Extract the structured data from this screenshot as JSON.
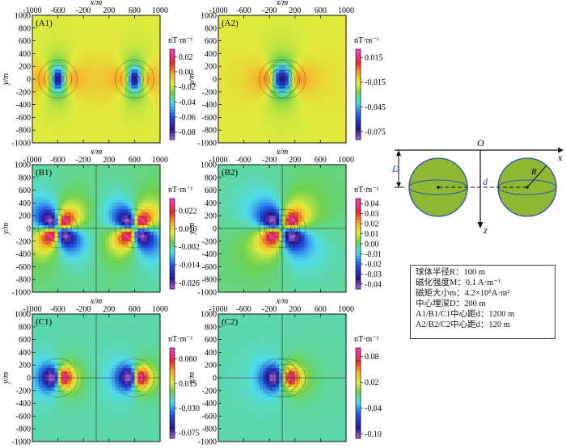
{
  "chart_data": [
    {
      "type": "heatmap",
      "panel": "(A1)",
      "xlabel": "x/m",
      "ylabel": "y/m",
      "xlim": [
        -1000,
        1000
      ],
      "ylim": [
        -1000,
        1000
      ],
      "xticks": [
        -1000,
        -600,
        -200,
        200,
        600,
        1000
      ],
      "yticks": [
        1000,
        800,
        600,
        400,
        200,
        0,
        -200,
        -400,
        -600,
        -800,
        -1000
      ],
      "colorbar_unit": "nT·m⁻¹",
      "colorbar_ticks": [
        "0.02",
        "0.00",
        "-0.02",
        "-0.04",
        "-0.06",
        "-0.08"
      ],
      "colorbar_range": [
        -0.09,
        0.03
      ],
      "sources_x": [
        -600,
        600
      ],
      "separation_m": 1200
    },
    {
      "type": "heatmap",
      "panel": "(A2)",
      "xlabel": "x/m",
      "ylabel": "y/m",
      "xlim": [
        -1000,
        1000
      ],
      "ylim": [
        -1000,
        1000
      ],
      "xticks": [
        -1000,
        -600,
        -200,
        200,
        600,
        1000
      ],
      "yticks": [
        1000,
        800,
        600,
        400,
        200,
        0,
        -200,
        -400,
        -600,
        -800,
        -1000
      ],
      "colorbar_unit": "nT·m⁻¹",
      "colorbar_ticks": [
        "0.015",
        "-0.015",
        "-0.045",
        "-0.075"
      ],
      "colorbar_range": [
        -0.085,
        0.025
      ],
      "sources_x": [
        -60,
        60
      ],
      "separation_m": 120
    },
    {
      "type": "heatmap",
      "panel": "(B1)",
      "xlabel": "x/m",
      "ylabel": "y/m",
      "xlim": [
        -1000,
        1000
      ],
      "ylim": [
        -1000,
        1000
      ],
      "xticks": [
        -1000,
        -600,
        -200,
        200,
        600,
        1000
      ],
      "yticks": [
        1000,
        800,
        600,
        400,
        200,
        0,
        -200,
        -400,
        -600,
        -800,
        -1000
      ],
      "colorbar_unit": "nT·m⁻¹",
      "colorbar_ticks": [
        "0.022",
        "0.010",
        "-0.002",
        "-0.014",
        "-0.026"
      ],
      "colorbar_range": [
        -0.03,
        0.03
      ],
      "sources_x": [
        -600,
        600
      ],
      "separation_m": 1200
    },
    {
      "type": "heatmap",
      "panel": "(B2)",
      "xlabel": "x/m",
      "ylabel": "y/m",
      "xlim": [
        -1000,
        1000
      ],
      "ylim": [
        -1000,
        1000
      ],
      "xticks": [
        -1000,
        -600,
        -200,
        200,
        600,
        1000
      ],
      "yticks": [
        1000,
        800,
        600,
        400,
        200,
        0,
        -200,
        -400,
        -600,
        -800,
        -1000
      ],
      "colorbar_unit": "nT·m⁻¹",
      "colorbar_ticks": [
        "0.04",
        "0.03",
        "0.02",
        "0.01",
        "0.00",
        "-0.01",
        "-0.02",
        "-0.03",
        "-0.04"
      ],
      "colorbar_range": [
        -0.045,
        0.045
      ],
      "sources_x": [
        -60,
        60
      ],
      "separation_m": 120
    },
    {
      "type": "heatmap",
      "panel": "(C1)",
      "xlabel": "x/m",
      "ylabel": "y/m",
      "xlim": [
        -1000,
        1000
      ],
      "ylim": [
        -1000,
        1000
      ],
      "xticks": [
        -1000,
        -600,
        -200,
        200,
        600,
        1000
      ],
      "yticks": [
        1000,
        800,
        600,
        400,
        200,
        0,
        -200,
        -400,
        -600,
        -800,
        -1000
      ],
      "colorbar_unit": "nT·m⁻¹",
      "colorbar_ticks": [
        "0.060",
        "0.015",
        "-0.030",
        "-0.075"
      ],
      "colorbar_range": [
        -0.085,
        0.08
      ],
      "sources_x": [
        -600,
        600
      ],
      "separation_m": 1200
    },
    {
      "type": "heatmap",
      "panel": "(C2)",
      "xlabel": "x/m",
      "ylabel": "y/m",
      "xlim": [
        -1000,
        1000
      ],
      "ylim": [
        -1000,
        1000
      ],
      "xticks": [
        -1000,
        -600,
        -200,
        200,
        600,
        1000
      ],
      "yticks": [
        1000,
        800,
        600,
        400,
        200,
        0,
        -200,
        -400,
        -600,
        -800,
        -1000
      ],
      "colorbar_unit": "nT·m⁻¹",
      "colorbar_ticks": [
        "0.08",
        "0.02",
        "-0.04",
        "-0.10"
      ],
      "colorbar_range": [
        -0.11,
        0.1
      ],
      "sources_x": [
        -60,
        60
      ],
      "separation_m": 120
    }
  ],
  "diagram": {
    "origin_label": "O",
    "x_axis_label": "x",
    "z_axis_label": "z",
    "depth_label": "D",
    "distance_label": "d",
    "radius_label": "R"
  },
  "parameters": {
    "rows": [
      "球体半径R：100 m",
      "磁化强度M：0.1 A·m⁻¹",
      "磁矩大小m：4.2×10⁵A·m²",
      "中心埋深D：200 m",
      "A1/B1/C1中心距d：1200 m",
      "A2/B2/C2中心距d：120 m"
    ]
  },
  "colors": {
    "sphere_fill": "#8fb832",
    "sphere_stroke": "#2a4fb5",
    "diagram_line": "#111111"
  }
}
